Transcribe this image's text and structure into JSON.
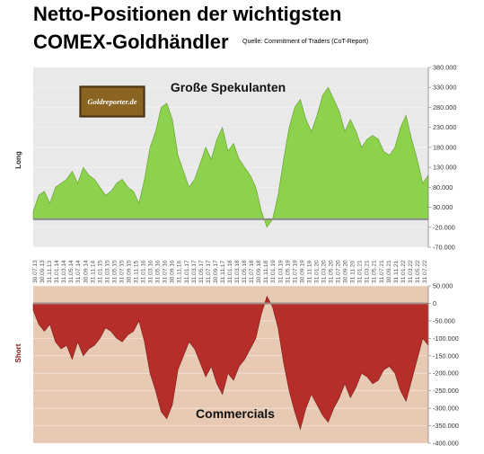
{
  "title_line1": "Netto-Positionen der wichtigsten",
  "title_line2": "COMEX-Goldhändler",
  "source": "Quelle: Commitment of Traders (CoT-Report)",
  "logo_text": "Goldreporter.de",
  "colors": {
    "speculators": "#8cd24c",
    "commercials": "#b52e2a",
    "top_bg": "#e9e9e9",
    "bottom_bg": "#e7c9b4",
    "long_label": "#333333",
    "short_label": "#8b1a1a"
  },
  "chart_data": [
    {
      "type": "area",
      "series": [
        {
          "name": "Große Spekulanten",
          "y": [
            20000,
            60000,
            70000,
            40000,
            80000,
            90000,
            100000,
            120000,
            90000,
            130000,
            110000,
            100000,
            80000,
            60000,
            70000,
            90000,
            100000,
            80000,
            70000,
            40000,
            100000,
            180000,
            220000,
            280000,
            290000,
            250000,
            160000,
            120000,
            80000,
            100000,
            140000,
            180000,
            150000,
            200000,
            230000,
            170000,
            190000,
            150000,
            130000,
            110000,
            80000,
            20000,
            -20000,
            0,
            60000,
            150000,
            230000,
            280000,
            300000,
            250000,
            220000,
            260000,
            310000,
            330000,
            300000,
            270000,
            220000,
            250000,
            220000,
            180000,
            200000,
            210000,
            200000,
            170000,
            160000,
            180000,
            230000,
            260000,
            200000,
            150000,
            90000,
            110000
          ]
        }
      ],
      "x_tick_labels": [
        "30.07.13",
        "30.09.13",
        "31.11.13",
        "31.01.14",
        "31.03.14",
        "31.05.14",
        "31.07.14",
        "30.09.14",
        "31.11.14",
        "31.01.15",
        "31.03.15",
        "31.05.15",
        "31.07.15",
        "30.09.15",
        "31.11.15",
        "31.01.16",
        "31.03.16",
        "31.05.16",
        "31.07.16",
        "30.09.16",
        "31.11.16",
        "31.01.17",
        "31.03.17",
        "31.05.17",
        "31.07.17",
        "30.09.17",
        "31.11.17",
        "31.01.18",
        "31.03.18",
        "31.05.18",
        "31.07.18",
        "30.09.18",
        "31.11.18",
        "31.01.19",
        "31.03.19",
        "31.05.19",
        "31.07.19",
        "30.09.19",
        "31.11.19",
        "31.01.20",
        "31.03.20",
        "31.05.20",
        "31.07.20",
        "30.09.20",
        "31.11.20",
        "31.01.21",
        "31.03.21",
        "31.05.21",
        "31.07.21",
        "30.09.21",
        "31.11.21",
        "31.01.22",
        "31.03.22",
        "31.05.22",
        "31.07.22"
      ],
      "y_ticks": [
        "380.000",
        "330.000",
        "280.000",
        "230.000",
        "180.000",
        "130.000",
        "80.000",
        "30.000",
        "-20.000",
        "-70.000"
      ],
      "ylim": [
        -70000,
        380000
      ],
      "ylabel": "Long",
      "annotation": "Große Spekulanten",
      "grid": true
    },
    {
      "type": "area",
      "series": [
        {
          "name": "Commercials",
          "y": [
            -20000,
            -60000,
            -80000,
            -60000,
            -110000,
            -130000,
            -120000,
            -160000,
            -110000,
            -150000,
            -130000,
            -120000,
            -100000,
            -70000,
            -80000,
            -100000,
            -110000,
            -90000,
            -80000,
            -50000,
            -110000,
            -200000,
            -250000,
            -310000,
            -330000,
            -290000,
            -190000,
            -150000,
            -110000,
            -130000,
            -170000,
            -210000,
            -180000,
            -230000,
            -260000,
            -200000,
            -220000,
            -180000,
            -160000,
            -130000,
            -100000,
            -30000,
            20000,
            -10000,
            -70000,
            -170000,
            -250000,
            -310000,
            -360000,
            -300000,
            -260000,
            -290000,
            -320000,
            -340000,
            -300000,
            -270000,
            -230000,
            -270000,
            -240000,
            -200000,
            -210000,
            -230000,
            -220000,
            -190000,
            -180000,
            -200000,
            -250000,
            -280000,
            -220000,
            -160000,
            -100000,
            -120000
          ]
        }
      ],
      "y_ticks": [
        "50.000",
        "0",
        "-50.000",
        "-100.000",
        "-150.000",
        "-200.000",
        "-250.000",
        "-300.000",
        "-350.000",
        "-400.000"
      ],
      "ylim": [
        -400000,
        50000
      ],
      "ylabel": "Short",
      "annotation": "Commercials",
      "grid": true
    }
  ]
}
